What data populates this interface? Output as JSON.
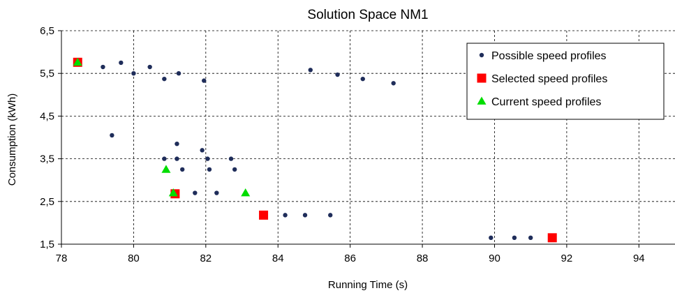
{
  "chart_data": {
    "type": "scatter",
    "title": "Solution Space NM1",
    "xlabel": "Running Time (s)",
    "ylabel": "Consumption (kWh)",
    "xlim": [
      78,
      95
    ],
    "ylim": [
      1.5,
      6.5
    ],
    "x_ticks": [
      "78",
      "80",
      "82",
      "84",
      "86",
      "88",
      "90",
      "92",
      "94"
    ],
    "x_tick_values": [
      78,
      80,
      82,
      84,
      86,
      88,
      90,
      92,
      94
    ],
    "y_ticks": [
      "1,5",
      "2,5",
      "3,5",
      "4,5",
      "5,5",
      "6,5"
    ],
    "y_tick_values": [
      1.5,
      2.5,
      3.5,
      4.5,
      5.5,
      6.5
    ],
    "grid": true,
    "legend_position": "top-right",
    "series": [
      {
        "name": "Possible speed profiles",
        "marker": "circle",
        "color": "#1f2d5a",
        "points": [
          [
            78.5,
            5.75
          ],
          [
            79.15,
            5.65
          ],
          [
            79.65,
            5.75
          ],
          [
            80.0,
            5.5
          ],
          [
            80.45,
            5.65
          ],
          [
            80.85,
            5.37
          ],
          [
            81.25,
            5.5
          ],
          [
            81.95,
            5.33
          ],
          [
            84.9,
            5.58
          ],
          [
            85.65,
            5.47
          ],
          [
            86.35,
            5.37
          ],
          [
            87.2,
            5.27
          ],
          [
            79.4,
            4.05
          ],
          [
            81.2,
            3.85
          ],
          [
            81.9,
            3.7
          ],
          [
            80.85,
            3.5
          ],
          [
            81.2,
            3.5
          ],
          [
            82.05,
            3.5
          ],
          [
            82.7,
            3.5
          ],
          [
            81.35,
            3.25
          ],
          [
            82.1,
            3.25
          ],
          [
            82.8,
            3.25
          ],
          [
            81.7,
            2.7
          ],
          [
            82.3,
            2.7
          ],
          [
            81.15,
            2.65
          ],
          [
            84.2,
            2.18
          ],
          [
            84.75,
            2.18
          ],
          [
            85.45,
            2.18
          ],
          [
            89.9,
            1.65
          ],
          [
            90.55,
            1.65
          ],
          [
            91.0,
            1.65
          ]
        ]
      },
      {
        "name": "Selected speed profiles",
        "marker": "square",
        "color": "#ff0000",
        "points": [
          [
            78.45,
            5.76
          ],
          [
            81.15,
            2.68
          ],
          [
            83.6,
            2.18
          ],
          [
            91.6,
            1.65
          ]
        ]
      },
      {
        "name": "Current speed profiles",
        "marker": "triangle",
        "color": "#00dd00",
        "points": [
          [
            78.45,
            5.76
          ],
          [
            80.9,
            3.25
          ],
          [
            81.1,
            2.7
          ],
          [
            83.1,
            2.7
          ]
        ]
      }
    ]
  }
}
